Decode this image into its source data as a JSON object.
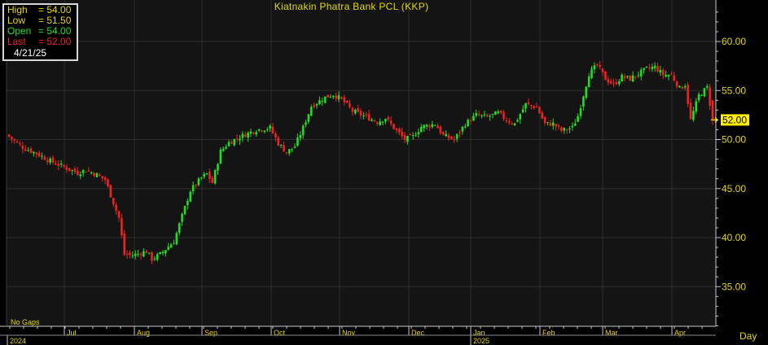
{
  "window": {
    "title": "Kiatnakin Phatra Bank PCL (KKP)",
    "no_gaps_label": "No Gaps",
    "period_label": "Day"
  },
  "info_box": {
    "high_label": "High",
    "high_value": "= 54.00",
    "low_label": "Low",
    "low_value": "= 51.50",
    "open_label": "Open",
    "open_value": "= 54.00",
    "last_label": "Last",
    "last_value": "= 52.00",
    "date": "4/21/25"
  },
  "colors": {
    "background": "#000000",
    "plot_background": "#141414",
    "gridline": "#2e2e2e",
    "up_candle": "#22dd22",
    "down_candle": "#ee2222",
    "text_yellow": "#e6d800",
    "last_price_marker": "#ffee00"
  },
  "chart_data": {
    "type": "candlestick",
    "title": "Kiatnakin Phatra Bank PCL (KKP)",
    "ylim": [
      30,
      63.5
    ],
    "y_ticks": [
      35,
      40,
      45,
      50,
      55,
      60
    ],
    "y_tick_labels": [
      "35.00",
      "40.00",
      "45.00",
      "50.00",
      "55.00",
      "60.00"
    ],
    "last_price": 52.0,
    "last_price_label": "52.00",
    "grid": true,
    "x_axis_months": [
      "Jul",
      "Aug",
      "Sep",
      "Oct",
      "Nov",
      "Dec",
      "Jan",
      "Feb",
      "Mar",
      "Apr"
    ],
    "x_axis_years": [
      "2024",
      "2025"
    ],
    "close_path": [
      [
        0,
        50.3
      ],
      [
        5,
        49.2
      ],
      [
        10,
        48.6
      ],
      [
        15,
        47.8
      ],
      [
        20,
        47.2
      ],
      [
        25,
        46.6
      ],
      [
        28,
        46.9
      ],
      [
        32,
        46.4
      ],
      [
        35,
        45.9
      ],
      [
        40,
        42.0
      ],
      [
        42,
        38.3
      ],
      [
        45,
        38.2
      ],
      [
        50,
        38.6
      ],
      [
        52,
        37.8
      ],
      [
        55,
        38.3
      ],
      [
        60,
        39.6
      ],
      [
        63,
        42.2
      ],
      [
        66,
        44.8
      ],
      [
        70,
        46.1
      ],
      [
        72,
        46.5
      ],
      [
        74,
        45.6
      ],
      [
        77,
        48.8
      ],
      [
        80,
        49.7
      ],
      [
        85,
        50.4
      ],
      [
        90,
        51.0
      ],
      [
        95,
        51.2
      ],
      [
        98,
        49.6
      ],
      [
        101,
        48.7
      ],
      [
        104,
        49.3
      ],
      [
        107,
        51.2
      ],
      [
        110,
        53.4
      ],
      [
        115,
        54.3
      ],
      [
        118,
        54.6
      ],
      [
        121,
        54.1
      ],
      [
        125,
        52.9
      ],
      [
        130,
        52.3
      ],
      [
        134,
        51.8
      ],
      [
        137,
        52.2
      ],
      [
        140,
        51.2
      ],
      [
        144,
        50.0
      ],
      [
        147,
        50.3
      ],
      [
        150,
        51.3
      ],
      [
        155,
        51.6
      ],
      [
        158,
        50.4
      ],
      [
        162,
        50.0
      ],
      [
        166,
        51.6
      ],
      [
        170,
        52.5
      ],
      [
        174,
        52.3
      ],
      [
        178,
        52.7
      ],
      [
        181,
        52.0
      ],
      [
        184,
        51.6
      ],
      [
        188,
        53.6
      ],
      [
        192,
        53.3
      ],
      [
        195,
        51.6
      ],
      [
        198,
        51.6
      ],
      [
        201,
        50.9
      ],
      [
        205,
        51.2
      ],
      [
        207,
        52.4
      ],
      [
        211,
        56.7
      ],
      [
        214,
        57.6
      ],
      [
        217,
        56.2
      ],
      [
        220,
        55.6
      ],
      [
        223,
        56.4
      ],
      [
        226,
        56.2
      ],
      [
        229,
        56.7
      ],
      [
        232,
        57.2
      ],
      [
        235,
        57.4
      ],
      [
        238,
        56.6
      ],
      [
        241,
        56.6
      ],
      [
        244,
        55.2
      ],
      [
        246,
        55.6
      ],
      [
        248,
        52.0
      ],
      [
        251,
        54.5
      ],
      [
        254,
        55.3
      ],
      [
        256,
        52.0
      ]
    ]
  }
}
